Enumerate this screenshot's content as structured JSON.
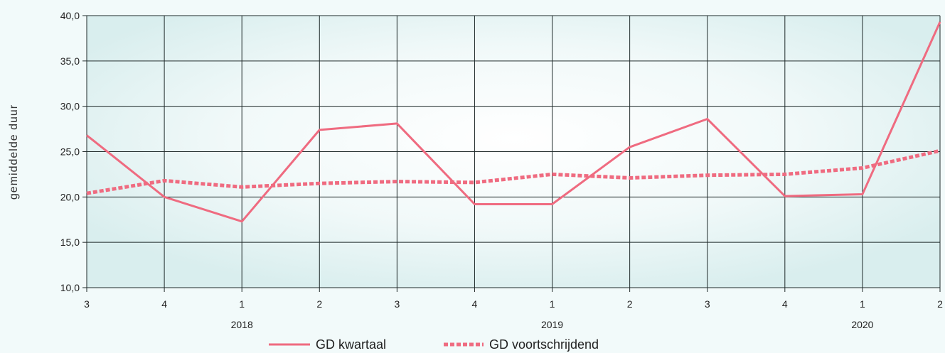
{
  "chart_data": {
    "type": "line",
    "ylabel": "gemiddelde duur",
    "xlabel": "",
    "ylim": [
      10,
      40
    ],
    "yticks": [
      "10,0",
      "15,0",
      "20,0",
      "25,0",
      "30,0",
      "35,0",
      "40,0"
    ],
    "categories": [
      "3",
      "4",
      "1",
      "2",
      "3",
      "4",
      "1",
      "2",
      "3",
      "4",
      "1",
      "2"
    ],
    "years": [
      {
        "label": "2018",
        "at_category": 2
      },
      {
        "label": "2019",
        "at_category": 6
      },
      {
        "label": "2020",
        "at_category": 10
      }
    ],
    "series": [
      {
        "name": "GD kwartaal",
        "style": "solid",
        "values": [
          26.8,
          20.0,
          17.3,
          27.4,
          28.1,
          19.2,
          19.2,
          25.5,
          28.6,
          20.1,
          20.3,
          39.3
        ]
      },
      {
        "name": "GD voortschrijdend",
        "style": "dashed",
        "values": [
          20.4,
          21.8,
          21.1,
          21.5,
          21.7,
          21.6,
          22.5,
          22.1,
          22.4,
          22.5,
          23.2,
          25.1
        ]
      }
    ],
    "grid": true,
    "legend": "bottom",
    "colors": {
      "line": "#ef6b80",
      "grid": "#1f2a2a"
    }
  }
}
